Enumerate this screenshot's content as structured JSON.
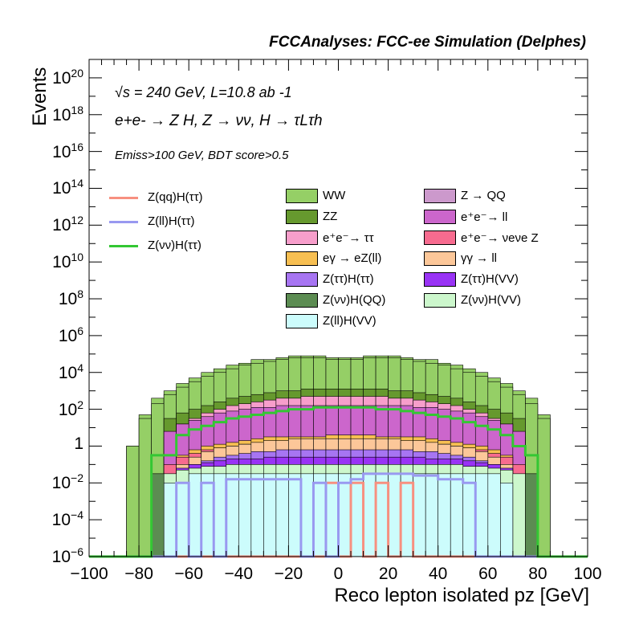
{
  "header": {
    "title": "FCCAnalyses: FCC-ee Simulation (Delphes)"
  },
  "annotations": {
    "energy_line": "√s = 240 GeV, L=10.8 ab -1",
    "process_line": "e+e- → Z H, Z → νν, H → τLτh",
    "cut_line": "Emiss>100 GeV, BDT score>0.5"
  },
  "chart_data": {
    "type": "area",
    "title": "FCCAnalyses: FCC-ee Simulation (Delphes)",
    "xlabel": "Reco lepton isolated pz [GeV]",
    "ylabel": "Events",
    "xlim": [
      -100,
      100
    ],
    "ylim_exponent": [
      -6,
      21
    ],
    "log_y": true,
    "x_ticks": [
      "−100",
      "−80",
      "−60",
      "−40",
      "−20",
      "0",
      "20",
      "40",
      "60",
      "80",
      "100"
    ],
    "y_ticks": [
      "10^-6",
      "10^-4",
      "10^-2",
      "1",
      "10^2",
      "10^4",
      "10^6",
      "10^8",
      "10^10",
      "10^12",
      "10^14",
      "10^16",
      "10^18",
      "10^20"
    ],
    "bin_edges": [
      -100,
      -90,
      -85,
      -80,
      -75,
      -70,
      -65,
      -60,
      -55,
      -50,
      -45,
      -40,
      -35,
      -30,
      -25,
      -20,
      -15,
      -10,
      -5,
      0,
      5,
      10,
      15,
      20,
      25,
      30,
      35,
      40,
      45,
      50,
      55,
      60,
      65,
      70,
      75,
      80,
      85,
      90,
      100
    ],
    "stack_log10": [
      {
        "name": "WW",
        "color": "#95cf66",
        "values": [
          -6,
          -6,
          0,
          1.5,
          2.3,
          2.8,
          3.2,
          3.5,
          3.8,
          4.0,
          4.2,
          4.4,
          4.5,
          4.6,
          4.7,
          4.8,
          4.8,
          4.8,
          4.7,
          4.7,
          4.7,
          4.8,
          4.8,
          4.8,
          4.7,
          4.6,
          4.5,
          4.4,
          4.2,
          4.0,
          3.8,
          3.5,
          3.2,
          2.8,
          2.3,
          1.5,
          -6,
          -6
        ]
      },
      {
        "name": "ZZ",
        "color": "#66992e",
        "values": [
          -6,
          -6,
          -6,
          -6,
          -6,
          1.5,
          1.8,
          2.0,
          2.2,
          2.4,
          2.6,
          2.7,
          2.8,
          2.9,
          3.0,
          3.0,
          3.1,
          3.1,
          3.1,
          3.1,
          3.1,
          3.1,
          3.1,
          3.0,
          3.0,
          2.9,
          2.8,
          2.7,
          2.6,
          2.4,
          2.2,
          2.0,
          1.8,
          1.5,
          -6,
          -6,
          -6,
          -6
        ]
      },
      {
        "name": "e⁺e⁻→ ττ",
        "color": "#f79ecb",
        "values": [
          -6,
          -6,
          -6,
          -6,
          -6,
          0.5,
          1.2,
          1.5,
          1.8,
          2.0,
          2.2,
          2.3,
          2.4,
          2.5,
          2.6,
          2.6,
          2.7,
          2.7,
          2.7,
          2.7,
          2.7,
          2.7,
          2.7,
          2.6,
          2.6,
          2.5,
          2.4,
          2.3,
          2.2,
          2.0,
          1.8,
          1.5,
          1.2,
          0.5,
          -6,
          -6,
          -6,
          -6
        ]
      },
      {
        "name": "eγ → eZ(ll)",
        "color": "#f7bf52",
        "values": [
          -6,
          -6,
          -6,
          -6,
          -6,
          -6,
          -0.5,
          -0.2,
          0.0,
          0.1,
          0.2,
          0.3,
          0.4,
          0.5,
          0.5,
          0.5,
          0.5,
          0.5,
          0.6,
          0.6,
          0.6,
          0.6,
          0.5,
          0.5,
          0.5,
          0.5,
          0.4,
          0.3,
          0.2,
          0.1,
          0.0,
          -0.2,
          -0.5,
          -6,
          -6,
          -6,
          -6,
          -6
        ]
      },
      {
        "name": "Z(ττ)H(ττ)",
        "color": "#a775f2",
        "values": [
          -6,
          -6,
          -6,
          -6,
          -6,
          -6,
          -1.5,
          -1.0,
          -0.8,
          -0.6,
          -0.5,
          -0.4,
          -0.3,
          -0.3,
          -0.2,
          -0.2,
          -0.2,
          -0.2,
          -0.2,
          -0.2,
          -0.2,
          -0.2,
          -0.2,
          -0.2,
          -0.2,
          -0.3,
          -0.3,
          -0.4,
          -0.5,
          -0.6,
          -0.8,
          -1.0,
          -1.5,
          -6,
          -6,
          -6,
          -6,
          -6
        ]
      },
      {
        "name": "Z(νν)H(QQ)",
        "color": "#5c8c52",
        "values": [
          -6,
          -6,
          -6,
          -6,
          -1.5,
          -6,
          -6,
          -6,
          -6,
          -6,
          -6,
          -6,
          -6,
          -6,
          -6,
          -6,
          -6,
          -6,
          -6,
          -6,
          -6,
          -6,
          -6,
          -6,
          -6,
          -6,
          -6,
          -6,
          -6,
          -6,
          -6,
          -6,
          -6,
          -6,
          -1.5,
          -6,
          -6,
          -6
        ]
      },
      {
        "name": "Z(ll)H(VV)",
        "color": "#ccfcfc",
        "values": [
          -6,
          -6,
          -6,
          -6,
          -6,
          -2.0,
          -2.0,
          -1.5,
          -1.5,
          -1.5,
          -1.5,
          -1.5,
          -1.5,
          -1.5,
          -1.5,
          -1.5,
          -1.5,
          -1.5,
          -1.5,
          -1.5,
          -1.5,
          -1.5,
          -1.5,
          -1.5,
          -1.5,
          -1.5,
          -1.5,
          -1.5,
          -1.5,
          -1.5,
          -1.5,
          -1.5,
          -2.0,
          -6,
          -6,
          -6,
          -6,
          -6
        ]
      },
      {
        "name": "Z → QQ",
        "color": "#cc99cc",
        "values": [
          -6,
          -6,
          -6,
          -6,
          -6,
          -6,
          -6,
          -6,
          -6,
          -6,
          -6,
          -6,
          -6,
          -6,
          -6,
          -6,
          -6,
          -6,
          -6,
          -6,
          -6,
          -6,
          -6,
          -6,
          -6,
          -6,
          -6,
          -6,
          -6,
          -6,
          -6,
          -6,
          -6,
          -6,
          -6,
          -6,
          -6,
          -6
        ]
      },
      {
        "name": "e⁺e⁻→ ll",
        "color": "#cc66cc",
        "values": [
          -6,
          -6,
          -6,
          -6,
          -6,
          0.8,
          1.2,
          1.4,
          1.6,
          1.8,
          1.9,
          2.0,
          2.1,
          2.1,
          2.2,
          2.2,
          2.2,
          2.2,
          2.2,
          2.2,
          2.2,
          2.2,
          2.2,
          2.2,
          2.2,
          2.1,
          2.1,
          2.0,
          1.9,
          1.8,
          1.6,
          1.4,
          1.2,
          0.8,
          -6,
          -6,
          -6,
          -6
        ]
      },
      {
        "name": "e⁺e⁻→ νeνe Z",
        "color": "#f76b8f",
        "values": [
          -6,
          -6,
          -6,
          -6,
          -6,
          -1.0,
          -0.6,
          -0.4,
          -0.2,
          -0.1,
          0.0,
          0.1,
          0.1,
          0.2,
          0.2,
          0.2,
          0.3,
          0.3,
          0.3,
          0.3,
          0.3,
          0.3,
          0.3,
          0.2,
          0.2,
          0.2,
          0.1,
          0.1,
          0.0,
          -0.1,
          -0.2,
          -0.4,
          -0.6,
          -1.0,
          -6,
          -6,
          -6,
          -6
        ]
      },
      {
        "name": "γγ → ll",
        "color": "#fcc799",
        "values": [
          -6,
          -6,
          -6,
          -6,
          -6,
          -6,
          -1.0,
          -0.6,
          -0.3,
          -0.1,
          0.0,
          0.1,
          0.2,
          0.3,
          0.3,
          0.4,
          0.4,
          0.4,
          0.4,
          0.4,
          0.4,
          0.4,
          0.4,
          0.4,
          0.3,
          0.3,
          0.2,
          0.1,
          0.0,
          -0.1,
          -0.3,
          -0.6,
          -1.0,
          -6,
          -6,
          -6,
          -6,
          -6
        ]
      },
      {
        "name": "Z(ττ)H(VV)",
        "color": "#9933f5",
        "values": [
          -6,
          -6,
          -6,
          -6,
          -6,
          -6,
          -1.2,
          -1.0,
          -0.9,
          -0.8,
          -0.7,
          -0.7,
          -0.7,
          -0.6,
          -0.6,
          -0.6,
          -0.6,
          -0.6,
          -0.6,
          -0.6,
          -0.6,
          -0.6,
          -0.6,
          -0.6,
          -0.6,
          -0.6,
          -0.7,
          -0.7,
          -0.7,
          -0.8,
          -0.9,
          -1.0,
          -1.2,
          -6,
          -6,
          -6,
          -6,
          -6
        ]
      },
      {
        "name": "Z(νν)H(VV)",
        "color": "#ccf7cc",
        "values": [
          -6,
          -6,
          -6,
          -6,
          -6,
          -1.5,
          -1.3,
          -1.2,
          -1.1,
          -1.1,
          -1.0,
          -1.0,
          -1.0,
          -1.0,
          -1.0,
          -1.0,
          -1.0,
          -1.0,
          -1.0,
          -1.0,
          -1.0,
          -1.0,
          -1.0,
          -1.0,
          -1.0,
          -1.0,
          -1.0,
          -1.0,
          -1.0,
          -1.1,
          -1.1,
          -1.2,
          -1.3,
          -1.5,
          -6,
          -6,
          -6,
          -6
        ]
      }
    ],
    "total_envelope_log10": [
      -6,
      -6,
      0.0,
      1.7,
      2.6,
      3.0,
      3.4,
      3.7,
      4.0,
      4.2,
      4.4,
      4.5,
      4.7,
      4.7,
      4.8,
      4.9,
      4.9,
      4.9,
      4.8,
      4.8,
      4.8,
      4.9,
      4.9,
      4.9,
      4.8,
      4.7,
      4.7,
      4.5,
      4.4,
      4.2,
      4.0,
      3.7,
      3.4,
      3.0,
      2.6,
      1.7,
      -6,
      -6
    ],
    "signals": [
      {
        "name": "Z(qq)H(ττ)",
        "color": "#f79080",
        "values": [
          -6,
          -6,
          -6,
          -6,
          -6,
          -6,
          -6,
          -6,
          -6,
          -6,
          -6,
          -6,
          -6,
          -6,
          -6,
          -6,
          -6,
          -6,
          -2.0,
          -6,
          -2.0,
          -6,
          -2.0,
          -6,
          -2.0,
          -6,
          -6,
          -6,
          -6,
          -6,
          -6,
          -6,
          -6,
          -6,
          -6,
          -6,
          -6,
          -6
        ]
      },
      {
        "name": "Z(ll)H(ττ)",
        "color": "#9999f0",
        "values": [
          -6,
          -6,
          -6,
          -6,
          -6,
          -6,
          -2.0,
          -6,
          -2.0,
          -6,
          -1.8,
          -1.8,
          -1.8,
          -1.8,
          -1.8,
          -1.8,
          -6,
          -2.0,
          -6,
          -2.0,
          -1.8,
          -1.5,
          -1.5,
          -1.5,
          -1.5,
          -1.6,
          -1.6,
          -1.8,
          -1.8,
          -2.0,
          -6,
          -6,
          -6,
          -6,
          -6,
          -6,
          -6,
          -6
        ]
      },
      {
        "name": "Z(νν)H(ττ)",
        "color": "#33c733",
        "values": [
          -6,
          -6,
          -6,
          -6,
          -0.5,
          -0.5,
          0.6,
          0.9,
          1.1,
          1.3,
          1.5,
          1.6,
          1.7,
          1.8,
          1.9,
          2.0,
          2.0,
          2.1,
          2.1,
          2.1,
          2.1,
          2.1,
          2.0,
          2.0,
          1.9,
          1.8,
          1.7,
          1.6,
          1.5,
          1.3,
          1.1,
          0.9,
          0.6,
          0.0,
          -0.5,
          -6,
          -6,
          -6
        ]
      }
    ],
    "legend": {
      "signals": [
        "Z(qq)H(ττ)",
        "Z(ll)H(ττ)",
        "Z(νν)H(ττ)"
      ],
      "backgrounds_col1": [
        "WW",
        "ZZ",
        "e⁺e⁻→ ττ",
        "eγ → eZ(ll)",
        "Z(ττ)H(ττ)",
        "Z(νν)H(QQ)",
        "Z(ll)H(VV)"
      ],
      "backgrounds_col2": [
        "Z → QQ",
        "e⁺e⁻→ ll",
        "e⁺e⁻→ νeνe Z",
        "γγ → ll",
        "Z(ττ)H(VV)",
        "Z(νν)H(VV)"
      ]
    }
  }
}
